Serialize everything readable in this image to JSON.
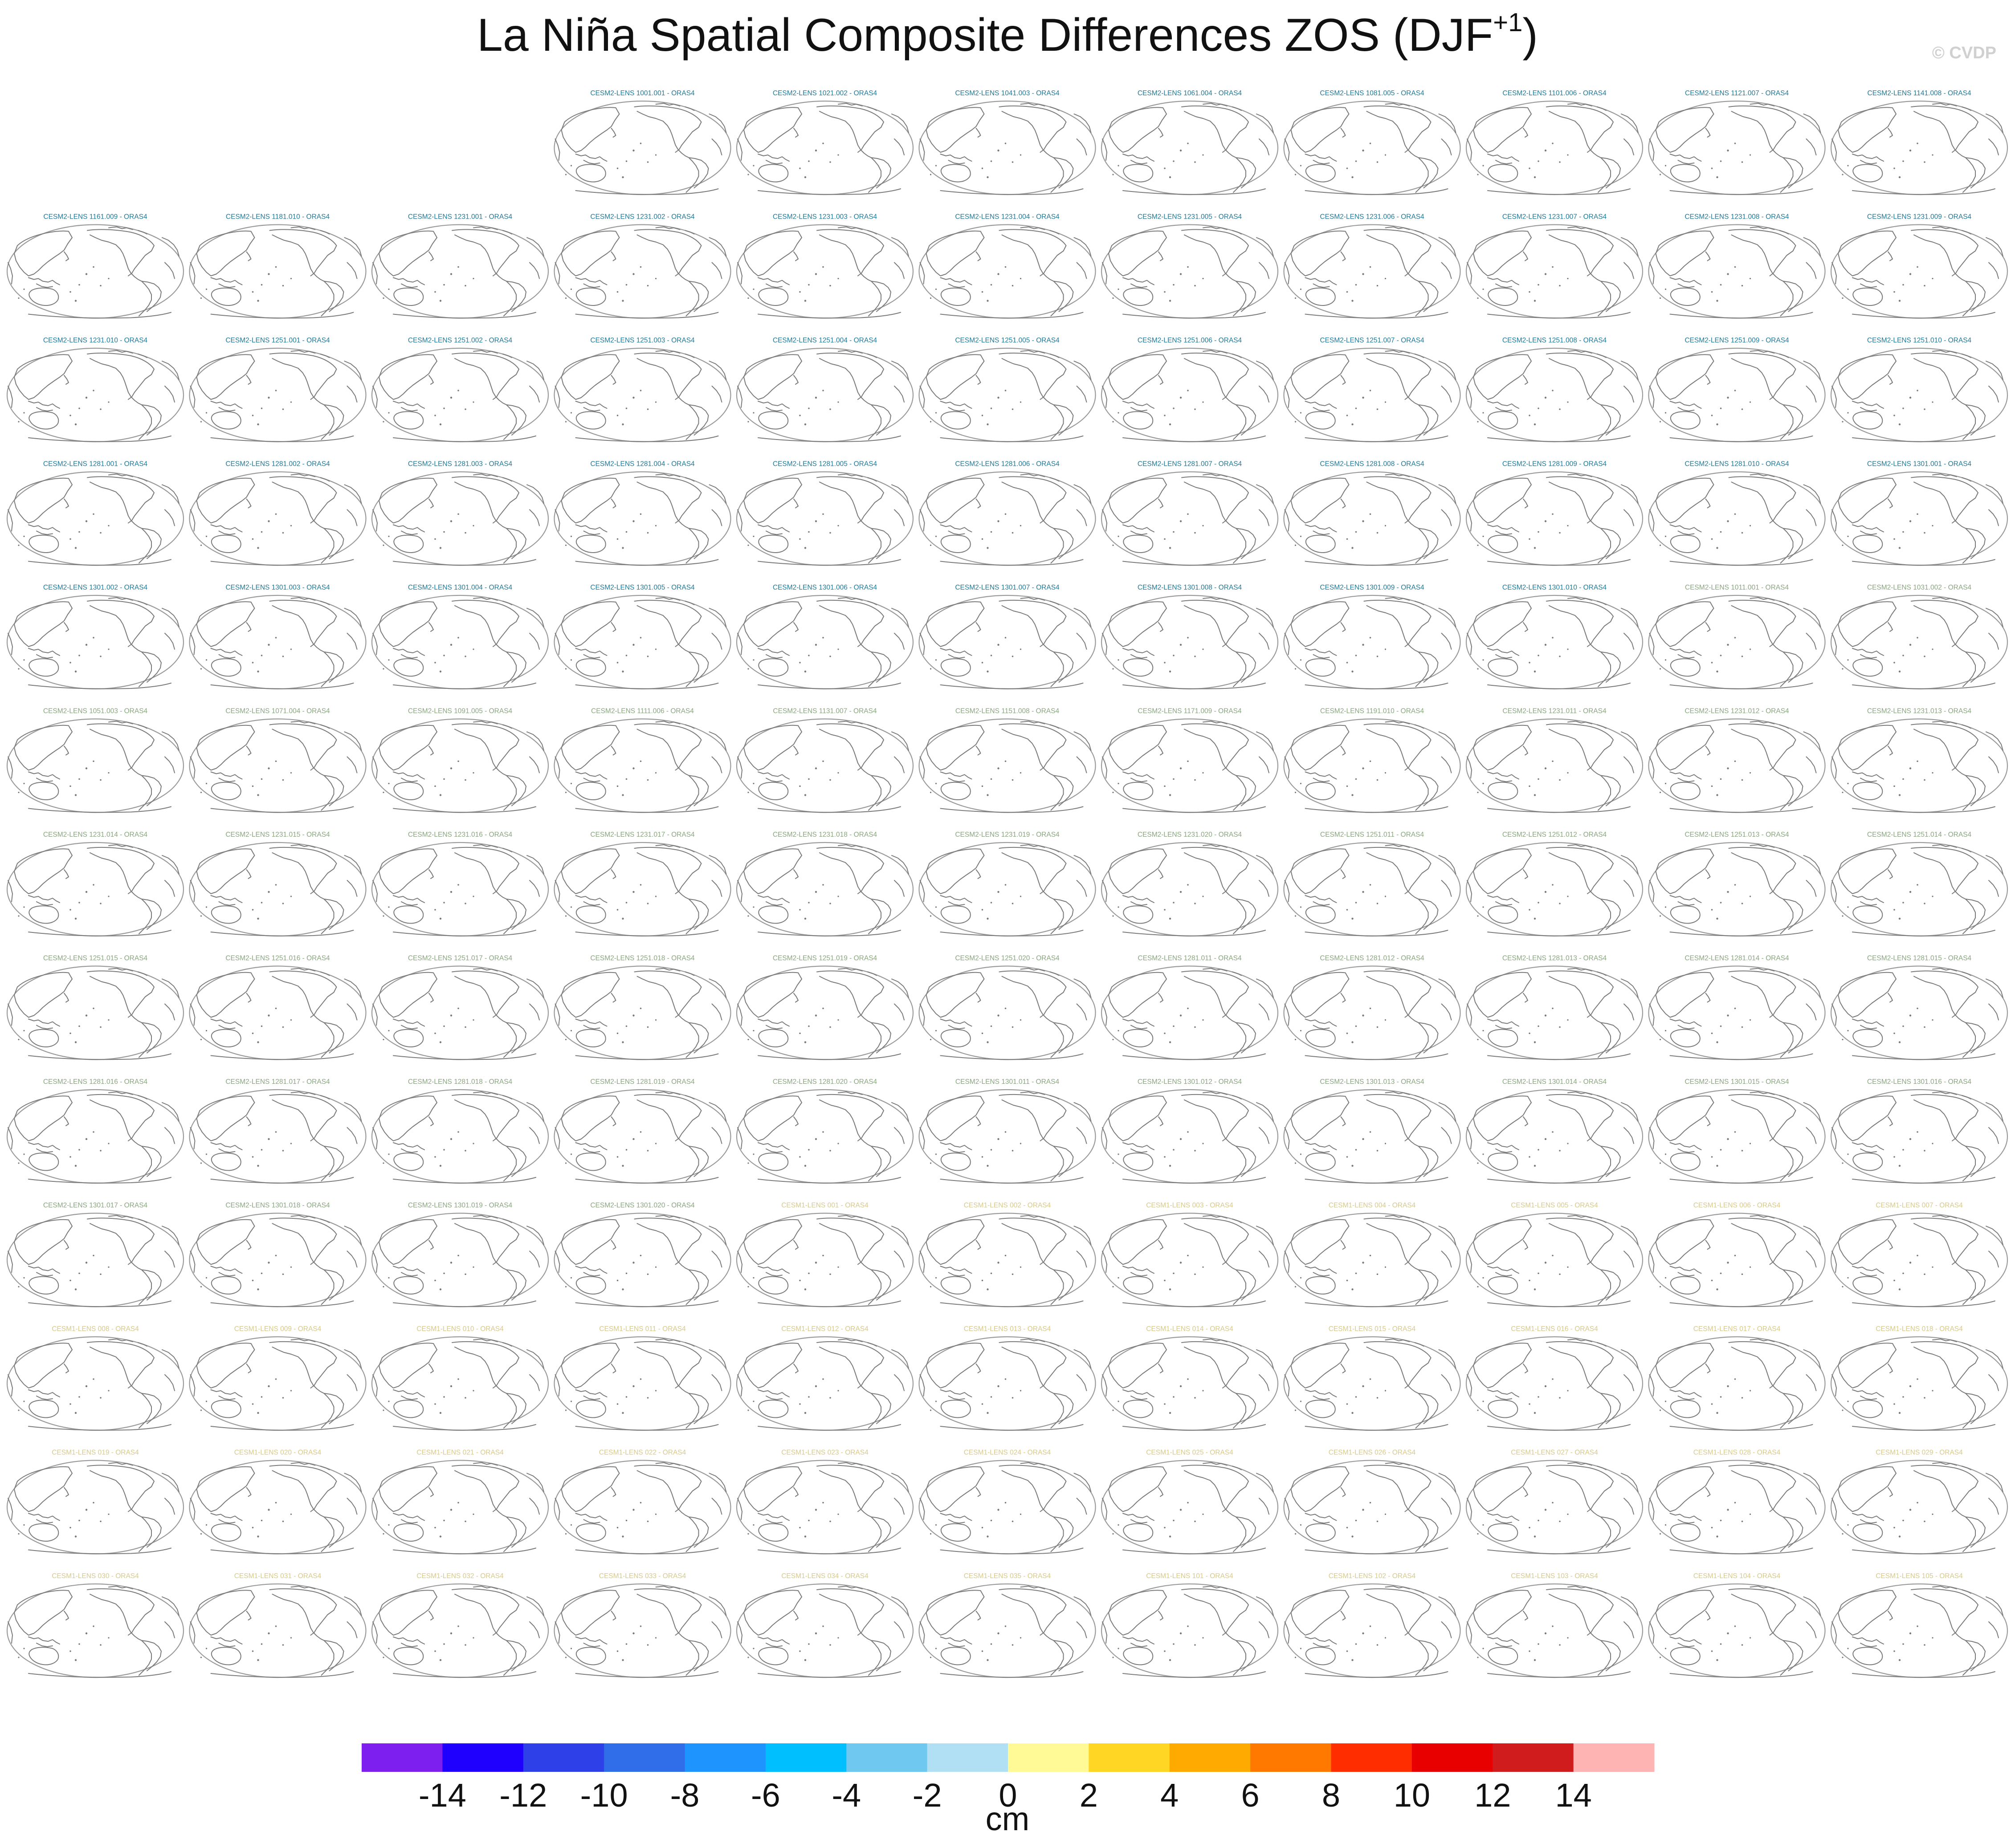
{
  "title": {
    "main": "La Niña Spatial Composite Differences ZOS (DJF",
    "superscript": "+1",
    "close": ")"
  },
  "copyright": "© CVDP",
  "colors": {
    "cesm2_smoothed": "#1f7a9a",
    "cesm2_macro": "#8aa67f",
    "cesm1": "#d8c98a"
  },
  "chart_data": {
    "type": "small-multiples-map",
    "projection": "robinson, pacific-centered",
    "grid": {
      "rows": 13,
      "cols": 11,
      "first_row_empty_columns": 3
    },
    "panels": [
      {
        "label": "CESM2-LENS 1001.001 - ORAS4",
        "group": "cesm2_smoothed"
      },
      {
        "label": "CESM2-LENS 1021.002 - ORAS4",
        "group": "cesm2_smoothed"
      },
      {
        "label": "CESM2-LENS 1041.003 - ORAS4",
        "group": "cesm2_smoothed"
      },
      {
        "label": "CESM2-LENS 1061.004 - ORAS4",
        "group": "cesm2_smoothed"
      },
      {
        "label": "CESM2-LENS 1081.005 - ORAS4",
        "group": "cesm2_smoothed"
      },
      {
        "label": "CESM2-LENS 1101.006 - ORAS4",
        "group": "cesm2_smoothed"
      },
      {
        "label": "CESM2-LENS 1121.007 - ORAS4",
        "group": "cesm2_smoothed"
      },
      {
        "label": "CESM2-LENS 1141.008 - ORAS4",
        "group": "cesm2_smoothed"
      },
      {
        "label": "CESM2-LENS 1161.009 - ORAS4",
        "group": "cesm2_smoothed"
      },
      {
        "label": "CESM2-LENS 1181.010 - ORAS4",
        "group": "cesm2_smoothed"
      },
      {
        "label": "CESM2-LENS 1231.001 - ORAS4",
        "group": "cesm2_smoothed"
      },
      {
        "label": "CESM2-LENS 1231.002 - ORAS4",
        "group": "cesm2_smoothed"
      },
      {
        "label": "CESM2-LENS 1231.003 - ORAS4",
        "group": "cesm2_smoothed"
      },
      {
        "label": "CESM2-LENS 1231.004 - ORAS4",
        "group": "cesm2_smoothed"
      },
      {
        "label": "CESM2-LENS 1231.005 - ORAS4",
        "group": "cesm2_smoothed"
      },
      {
        "label": "CESM2-LENS 1231.006 - ORAS4",
        "group": "cesm2_smoothed"
      },
      {
        "label": "CESM2-LENS 1231.007 - ORAS4",
        "group": "cesm2_smoothed"
      },
      {
        "label": "CESM2-LENS 1231.008 - ORAS4",
        "group": "cesm2_smoothed"
      },
      {
        "label": "CESM2-LENS 1231.009 - ORAS4",
        "group": "cesm2_smoothed"
      },
      {
        "label": "CESM2-LENS 1231.010 - ORAS4",
        "group": "cesm2_smoothed"
      },
      {
        "label": "CESM2-LENS 1251.001 - ORAS4",
        "group": "cesm2_smoothed"
      },
      {
        "label": "CESM2-LENS 1251.002 - ORAS4",
        "group": "cesm2_smoothed"
      },
      {
        "label": "CESM2-LENS 1251.003 - ORAS4",
        "group": "cesm2_smoothed"
      },
      {
        "label": "CESM2-LENS 1251.004 - ORAS4",
        "group": "cesm2_smoothed"
      },
      {
        "label": "CESM2-LENS 1251.005 - ORAS4",
        "group": "cesm2_smoothed"
      },
      {
        "label": "CESM2-LENS 1251.006 - ORAS4",
        "group": "cesm2_smoothed"
      },
      {
        "label": "CESM2-LENS 1251.007 - ORAS4",
        "group": "cesm2_smoothed"
      },
      {
        "label": "CESM2-LENS 1251.008 - ORAS4",
        "group": "cesm2_smoothed"
      },
      {
        "label": "CESM2-LENS 1251.009 - ORAS4",
        "group": "cesm2_smoothed"
      },
      {
        "label": "CESM2-LENS 1251.010 - ORAS4",
        "group": "cesm2_smoothed"
      },
      {
        "label": "CESM2-LENS 1281.001 - ORAS4",
        "group": "cesm2_smoothed"
      },
      {
        "label": "CESM2-LENS 1281.002 - ORAS4",
        "group": "cesm2_smoothed"
      },
      {
        "label": "CESM2-LENS 1281.003 - ORAS4",
        "group": "cesm2_smoothed"
      },
      {
        "label": "CESM2-LENS 1281.004 - ORAS4",
        "group": "cesm2_smoothed"
      },
      {
        "label": "CESM2-LENS 1281.005 - ORAS4",
        "group": "cesm2_smoothed"
      },
      {
        "label": "CESM2-LENS 1281.006 - ORAS4",
        "group": "cesm2_smoothed"
      },
      {
        "label": "CESM2-LENS 1281.007 - ORAS4",
        "group": "cesm2_smoothed"
      },
      {
        "label": "CESM2-LENS 1281.008 - ORAS4",
        "group": "cesm2_smoothed"
      },
      {
        "label": "CESM2-LENS 1281.009 - ORAS4",
        "group": "cesm2_smoothed"
      },
      {
        "label": "CESM2-LENS 1281.010 - ORAS4",
        "group": "cesm2_smoothed"
      },
      {
        "label": "CESM2-LENS 1301.001 - ORAS4",
        "group": "cesm2_smoothed"
      },
      {
        "label": "CESM2-LENS 1301.002 - ORAS4",
        "group": "cesm2_smoothed"
      },
      {
        "label": "CESM2-LENS 1301.003 - ORAS4",
        "group": "cesm2_smoothed"
      },
      {
        "label": "CESM2-LENS 1301.004 - ORAS4",
        "group": "cesm2_smoothed"
      },
      {
        "label": "CESM2-LENS 1301.005 - ORAS4",
        "group": "cesm2_smoothed"
      },
      {
        "label": "CESM2-LENS 1301.006 - ORAS4",
        "group": "cesm2_smoothed"
      },
      {
        "label": "CESM2-LENS 1301.007 - ORAS4",
        "group": "cesm2_smoothed"
      },
      {
        "label": "CESM2-LENS 1301.008 - ORAS4",
        "group": "cesm2_smoothed"
      },
      {
        "label": "CESM2-LENS 1301.009 - ORAS4",
        "group": "cesm2_smoothed"
      },
      {
        "label": "CESM2-LENS 1301.010 - ORAS4",
        "group": "cesm2_smoothed"
      },
      {
        "label": "CESM2-LENS 1011.001 - ORAS4",
        "group": "cesm2_macro"
      },
      {
        "label": "CESM2-LENS 1031.002 - ORAS4",
        "group": "cesm2_macro"
      },
      {
        "label": "CESM2-LENS 1051.003 - ORAS4",
        "group": "cesm2_macro"
      },
      {
        "label": "CESM2-LENS 1071.004 - ORAS4",
        "group": "cesm2_macro"
      },
      {
        "label": "CESM2-LENS 1091.005 - ORAS4",
        "group": "cesm2_macro"
      },
      {
        "label": "CESM2-LENS 1111.006 - ORAS4",
        "group": "cesm2_macro"
      },
      {
        "label": "CESM2-LENS 1131.007 - ORAS4",
        "group": "cesm2_macro"
      },
      {
        "label": "CESM2-LENS 1151.008 - ORAS4",
        "group": "cesm2_macro"
      },
      {
        "label": "CESM2-LENS 1171.009 - ORAS4",
        "group": "cesm2_macro"
      },
      {
        "label": "CESM2-LENS 1191.010 - ORAS4",
        "group": "cesm2_macro"
      },
      {
        "label": "CESM2-LENS 1231.011 - ORAS4",
        "group": "cesm2_macro"
      },
      {
        "label": "CESM2-LENS 1231.012 - ORAS4",
        "group": "cesm2_macro"
      },
      {
        "label": "CESM2-LENS 1231.013 - ORAS4",
        "group": "cesm2_macro"
      },
      {
        "label": "CESM2-LENS 1231.014 - ORAS4",
        "group": "cesm2_macro"
      },
      {
        "label": "CESM2-LENS 1231.015 - ORAS4",
        "group": "cesm2_macro"
      },
      {
        "label": "CESM2-LENS 1231.016 - ORAS4",
        "group": "cesm2_macro"
      },
      {
        "label": "CESM2-LENS 1231.017 - ORAS4",
        "group": "cesm2_macro"
      },
      {
        "label": "CESM2-LENS 1231.018 - ORAS4",
        "group": "cesm2_macro"
      },
      {
        "label": "CESM2-LENS 1231.019 - ORAS4",
        "group": "cesm2_macro"
      },
      {
        "label": "CESM2-LENS 1231.020 - ORAS4",
        "group": "cesm2_macro"
      },
      {
        "label": "CESM2-LENS 1251.011 - ORAS4",
        "group": "cesm2_macro"
      },
      {
        "label": "CESM2-LENS 1251.012 - ORAS4",
        "group": "cesm2_macro"
      },
      {
        "label": "CESM2-LENS 1251.013 - ORAS4",
        "group": "cesm2_macro"
      },
      {
        "label": "CESM2-LENS 1251.014 - ORAS4",
        "group": "cesm2_macro"
      },
      {
        "label": "CESM2-LENS 1251.015 - ORAS4",
        "group": "cesm2_macro"
      },
      {
        "label": "CESM2-LENS 1251.016 - ORAS4",
        "group": "cesm2_macro"
      },
      {
        "label": "CESM2-LENS 1251.017 - ORAS4",
        "group": "cesm2_macro"
      },
      {
        "label": "CESM2-LENS 1251.018 - ORAS4",
        "group": "cesm2_macro"
      },
      {
        "label": "CESM2-LENS 1251.019 - ORAS4",
        "group": "cesm2_macro"
      },
      {
        "label": "CESM2-LENS 1251.020 - ORAS4",
        "group": "cesm2_macro"
      },
      {
        "label": "CESM2-LENS 1281.011 - ORAS4",
        "group": "cesm2_macro"
      },
      {
        "label": "CESM2-LENS 1281.012 - ORAS4",
        "group": "cesm2_macro"
      },
      {
        "label": "CESM2-LENS 1281.013 - ORAS4",
        "group": "cesm2_macro"
      },
      {
        "label": "CESM2-LENS 1281.014 - ORAS4",
        "group": "cesm2_macro"
      },
      {
        "label": "CESM2-LENS 1281.015 - ORAS4",
        "group": "cesm2_macro"
      },
      {
        "label": "CESM2-LENS 1281.016 - ORAS4",
        "group": "cesm2_macro"
      },
      {
        "label": "CESM2-LENS 1281.017 - ORAS4",
        "group": "cesm2_macro"
      },
      {
        "label": "CESM2-LENS 1281.018 - ORAS4",
        "group": "cesm2_macro"
      },
      {
        "label": "CESM2-LENS 1281.019 - ORAS4",
        "group": "cesm2_macro"
      },
      {
        "label": "CESM2-LENS 1281.020 - ORAS4",
        "group": "cesm2_macro"
      },
      {
        "label": "CESM2-LENS 1301.011 - ORAS4",
        "group": "cesm2_macro"
      },
      {
        "label": "CESM2-LENS 1301.012 - ORAS4",
        "group": "cesm2_macro"
      },
      {
        "label": "CESM2-LENS 1301.013 - ORAS4",
        "group": "cesm2_macro"
      },
      {
        "label": "CESM2-LENS 1301.014 - ORAS4",
        "group": "cesm2_macro"
      },
      {
        "label": "CESM2-LENS 1301.015 - ORAS4",
        "group": "cesm2_macro"
      },
      {
        "label": "CESM2-LENS 1301.016 - ORAS4",
        "group": "cesm2_macro"
      },
      {
        "label": "CESM2-LENS 1301.017 - ORAS4",
        "group": "cesm2_macro"
      },
      {
        "label": "CESM2-LENS 1301.018 - ORAS4",
        "group": "cesm2_macro"
      },
      {
        "label": "CESM2-LENS 1301.019 - ORAS4",
        "group": "cesm2_macro"
      },
      {
        "label": "CESM2-LENS 1301.020 - ORAS4",
        "group": "cesm2_macro"
      },
      {
        "label": "CESM1-LENS 001 - ORAS4",
        "group": "cesm1"
      },
      {
        "label": "CESM1-LENS 002 - ORAS4",
        "group": "cesm1"
      },
      {
        "label": "CESM1-LENS 003 - ORAS4",
        "group": "cesm1"
      },
      {
        "label": "CESM1-LENS 004 - ORAS4",
        "group": "cesm1"
      },
      {
        "label": "CESM1-LENS 005 - ORAS4",
        "group": "cesm1"
      },
      {
        "label": "CESM1-LENS 006 - ORAS4",
        "group": "cesm1"
      },
      {
        "label": "CESM1-LENS 007 - ORAS4",
        "group": "cesm1"
      },
      {
        "label": "CESM1-LENS 008 - ORAS4",
        "group": "cesm1"
      },
      {
        "label": "CESM1-LENS 009 - ORAS4",
        "group": "cesm1"
      },
      {
        "label": "CESM1-LENS 010 - ORAS4",
        "group": "cesm1"
      },
      {
        "label": "CESM1-LENS 011 - ORAS4",
        "group": "cesm1"
      },
      {
        "label": "CESM1-LENS 012 - ORAS4",
        "group": "cesm1"
      },
      {
        "label": "CESM1-LENS 013 - ORAS4",
        "group": "cesm1"
      },
      {
        "label": "CESM1-LENS 014 - ORAS4",
        "group": "cesm1"
      },
      {
        "label": "CESM1-LENS 015 - ORAS4",
        "group": "cesm1"
      },
      {
        "label": "CESM1-LENS 016 - ORAS4",
        "group": "cesm1"
      },
      {
        "label": "CESM1-LENS 017 - ORAS4",
        "group": "cesm1"
      },
      {
        "label": "CESM1-LENS 018 - ORAS4",
        "group": "cesm1"
      },
      {
        "label": "CESM1-LENS 019 - ORAS4",
        "group": "cesm1"
      },
      {
        "label": "CESM1-LENS 020 - ORAS4",
        "group": "cesm1"
      },
      {
        "label": "CESM1-LENS 021 - ORAS4",
        "group": "cesm1"
      },
      {
        "label": "CESM1-LENS 022 - ORAS4",
        "group": "cesm1"
      },
      {
        "label": "CESM1-LENS 023 - ORAS4",
        "group": "cesm1"
      },
      {
        "label": "CESM1-LENS 024 - ORAS4",
        "group": "cesm1"
      },
      {
        "label": "CESM1-LENS 025 - ORAS4",
        "group": "cesm1"
      },
      {
        "label": "CESM1-LENS 026 - ORAS4",
        "group": "cesm1"
      },
      {
        "label": "CESM1-LENS 027 - ORAS4",
        "group": "cesm1"
      },
      {
        "label": "CESM1-LENS 028 - ORAS4",
        "group": "cesm1"
      },
      {
        "label": "CESM1-LENS 029 - ORAS4",
        "group": "cesm1"
      },
      {
        "label": "CESM1-LENS 030 - ORAS4",
        "group": "cesm1"
      },
      {
        "label": "CESM1-LENS 031 - ORAS4",
        "group": "cesm1"
      },
      {
        "label": "CESM1-LENS 032 - ORAS4",
        "group": "cesm1"
      },
      {
        "label": "CESM1-LENS 033 - ORAS4",
        "group": "cesm1"
      },
      {
        "label": "CESM1-LENS 034 - ORAS4",
        "group": "cesm1"
      },
      {
        "label": "CESM1-LENS 035 - ORAS4",
        "group": "cesm1"
      },
      {
        "label": "CESM1-LENS 101 - ORAS4",
        "group": "cesm1"
      },
      {
        "label": "CESM1-LENS 102 - ORAS4",
        "group": "cesm1"
      },
      {
        "label": "CESM1-LENS 103 - ORAS4",
        "group": "cesm1"
      },
      {
        "label": "CESM1-LENS 104 - ORAS4",
        "group": "cesm1"
      },
      {
        "label": "CESM1-LENS 105 - ORAS4",
        "group": "cesm1"
      }
    ],
    "colorbar": {
      "ticks": [
        "-14",
        "-12",
        "-10",
        "-8",
        "-6",
        "-4",
        "-2",
        "0",
        "2",
        "4",
        "6",
        "8",
        "10",
        "12",
        "14"
      ],
      "colors": [
        "#7c1fef",
        "#1f00ff",
        "#2e40e8",
        "#2f6ee8",
        "#1e94ff",
        "#00bfff",
        "#6fc8f0",
        "#b1e0f5",
        "#fffa96",
        "#ffd624",
        "#ffaa00",
        "#ff7800",
        "#ff2d00",
        "#e80000",
        "#d01c1c",
        "#ffb4b4"
      ],
      "unit": "cm",
      "range": [
        -16,
        16
      ]
    }
  }
}
